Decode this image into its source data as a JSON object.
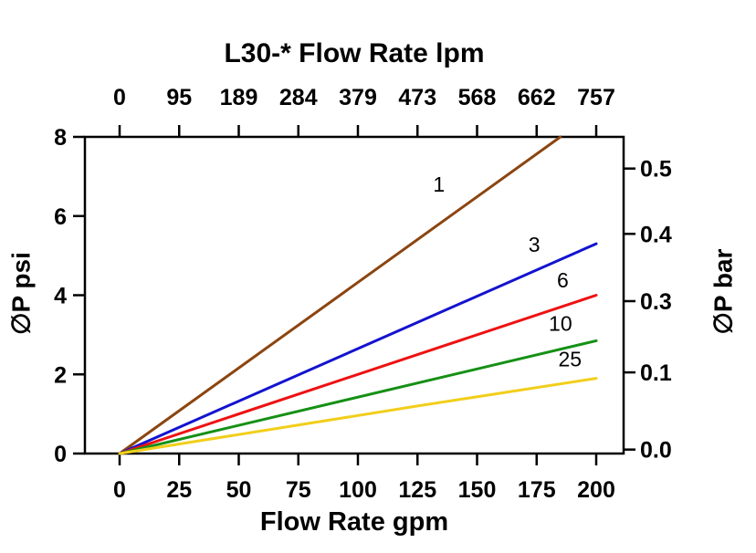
{
  "chart_data": {
    "type": "line",
    "title": "L30-* Flow Rate lpm",
    "top_axis_title": "L30-* Flow Rate lpm",
    "xlabel": "Flow Rate gpm",
    "ylabel_left": "∅P psi",
    "ylabel_right": "∅P bar",
    "x_range_gpm": [
      0,
      200
    ],
    "y_range_psi": [
      0,
      8
    ],
    "grid": false,
    "x_ticks_bottom": [
      "0",
      "25",
      "50",
      "75",
      "100",
      "125",
      "150",
      "175",
      "200"
    ],
    "x_ticks_top": [
      "0",
      "95",
      "189",
      "284",
      "379",
      "473",
      "568",
      "662",
      "757"
    ],
    "y_ticks_left": [
      "0",
      "2",
      "4",
      "6",
      "8"
    ],
    "y_ticks_right": [
      {
        "label": "0.0",
        "psi": 0.1
      },
      {
        "label": "0.1",
        "psi": 2.05
      },
      {
        "label": "0.3",
        "psi": 3.85
      },
      {
        "label": "0.4",
        "psi": 5.55
      },
      {
        "label": "0.5",
        "psi": 7.2
      }
    ],
    "series": [
      {
        "name": "1",
        "color": "#8C4510",
        "points": [
          [
            0,
            0
          ],
          [
            185,
            8.0
          ]
        ],
        "label_at": [
          134,
          6.62
        ]
      },
      {
        "name": "3",
        "color": "#1313CF",
        "points": [
          [
            0,
            0
          ],
          [
            200,
            5.3
          ]
        ],
        "label_at": [
          174,
          5.1
        ]
      },
      {
        "name": "6",
        "color": "#EE1111",
        "points": [
          [
            0,
            0
          ],
          [
            200,
            4.0
          ]
        ],
        "label_at": [
          186,
          4.2
        ]
      },
      {
        "name": "10",
        "color": "#159015",
        "points": [
          [
            0,
            0
          ],
          [
            200,
            2.85
          ]
        ],
        "label_at": [
          185,
          3.1
        ]
      },
      {
        "name": "25",
        "color": "#F2CE1B",
        "points": [
          [
            0,
            0
          ],
          [
            125,
            1.2
          ],
          [
            200,
            1.9
          ]
        ],
        "label_at": [
          189,
          2.2
        ]
      }
    ]
  }
}
